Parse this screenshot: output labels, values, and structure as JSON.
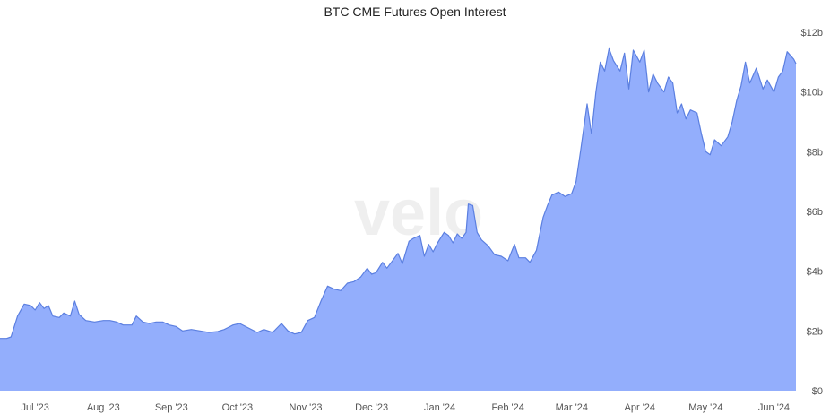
{
  "watermark": "velo",
  "chart_data": {
    "type": "area",
    "title": "BTC CME Futures Open Interest",
    "xlabel": "",
    "ylabel": "",
    "y_unit": "billion USD",
    "ylim": [
      0,
      12
    ],
    "y_ticks": [
      0,
      2,
      4,
      6,
      8,
      10,
      12
    ],
    "y_tick_labels": [
      "$0",
      "$2b",
      "$4b",
      "$6b",
      "$8b",
      "$10b",
      "$12b"
    ],
    "y_axis_side": "right",
    "x_range": [
      "2023-06-15",
      "2024-06-11"
    ],
    "x_ticks": [
      {
        "date": "2023-07-01",
        "label": "Jul '23"
      },
      {
        "date": "2023-08-01",
        "label": "Aug '23"
      },
      {
        "date": "2023-09-01",
        "label": "Sep '23"
      },
      {
        "date": "2023-10-01",
        "label": "Oct '23"
      },
      {
        "date": "2023-11-01",
        "label": "Nov '23"
      },
      {
        "date": "2023-12-01",
        "label": "Dec '23"
      },
      {
        "date": "2024-01-01",
        "label": "Jan '24"
      },
      {
        "date": "2024-02-01",
        "label": "Feb '24"
      },
      {
        "date": "2024-03-01",
        "label": "Mar '24"
      },
      {
        "date": "2024-04-01",
        "label": "Apr '24"
      },
      {
        "date": "2024-05-01",
        "label": "May '24"
      },
      {
        "date": "2024-06-01",
        "label": "Jun '24"
      }
    ],
    "grid": false,
    "colors": {
      "line": "#5b7fe0",
      "fill": "#93aefc"
    },
    "series": [
      {
        "points": [
          [
            "2023-06-15",
            1.75
          ],
          [
            "2023-06-18",
            1.75
          ],
          [
            "2023-06-20",
            1.8
          ],
          [
            "2023-06-23",
            2.5
          ],
          [
            "2023-06-26",
            2.9
          ],
          [
            "2023-06-29",
            2.85
          ],
          [
            "2023-07-01",
            2.7
          ],
          [
            "2023-07-03",
            2.95
          ],
          [
            "2023-07-05",
            2.75
          ],
          [
            "2023-07-07",
            2.85
          ],
          [
            "2023-07-09",
            2.5
          ],
          [
            "2023-07-12",
            2.45
          ],
          [
            "2023-07-14",
            2.6
          ],
          [
            "2023-07-17",
            2.5
          ],
          [
            "2023-07-19",
            3.0
          ],
          [
            "2023-07-21",
            2.55
          ],
          [
            "2023-07-24",
            2.35
          ],
          [
            "2023-07-28",
            2.3
          ],
          [
            "2023-08-01",
            2.35
          ],
          [
            "2023-08-04",
            2.35
          ],
          [
            "2023-08-07",
            2.3
          ],
          [
            "2023-08-10",
            2.2
          ],
          [
            "2023-08-14",
            2.2
          ],
          [
            "2023-08-16",
            2.5
          ],
          [
            "2023-08-19",
            2.3
          ],
          [
            "2023-08-22",
            2.25
          ],
          [
            "2023-08-25",
            2.3
          ],
          [
            "2023-08-28",
            2.3
          ],
          [
            "2023-08-31",
            2.2
          ],
          [
            "2023-09-03",
            2.15
          ],
          [
            "2023-09-06",
            2.0
          ],
          [
            "2023-09-10",
            2.05
          ],
          [
            "2023-09-14",
            2.0
          ],
          [
            "2023-09-18",
            1.95
          ],
          [
            "2023-09-22",
            1.98
          ],
          [
            "2023-09-25",
            2.05
          ],
          [
            "2023-09-29",
            2.2
          ],
          [
            "2023-10-02",
            2.25
          ],
          [
            "2023-10-06",
            2.1
          ],
          [
            "2023-10-10",
            1.95
          ],
          [
            "2023-10-13",
            2.05
          ],
          [
            "2023-10-17",
            1.95
          ],
          [
            "2023-10-21",
            2.25
          ],
          [
            "2023-10-24",
            2.0
          ],
          [
            "2023-10-27",
            1.9
          ],
          [
            "2023-10-30",
            1.95
          ],
          [
            "2023-11-02",
            2.35
          ],
          [
            "2023-11-05",
            2.45
          ],
          [
            "2023-11-08",
            3.0
          ],
          [
            "2023-11-11",
            3.5
          ],
          [
            "2023-11-14",
            3.4
          ],
          [
            "2023-11-17",
            3.35
          ],
          [
            "2023-11-20",
            3.6
          ],
          [
            "2023-11-23",
            3.65
          ],
          [
            "2023-11-26",
            3.8
          ],
          [
            "2023-11-29",
            4.1
          ],
          [
            "2023-12-01",
            3.9
          ],
          [
            "2023-12-03",
            3.95
          ],
          [
            "2023-12-06",
            4.3
          ],
          [
            "2023-12-08",
            4.1
          ],
          [
            "2023-12-11",
            4.4
          ],
          [
            "2023-12-13",
            4.6
          ],
          [
            "2023-12-15",
            4.25
          ],
          [
            "2023-12-18",
            5.0
          ],
          [
            "2023-12-20",
            5.1
          ],
          [
            "2023-12-23",
            5.2
          ],
          [
            "2023-12-25",
            4.5
          ],
          [
            "2023-12-27",
            4.9
          ],
          [
            "2023-12-29",
            4.65
          ],
          [
            "2023-12-31",
            4.95
          ],
          [
            "2024-01-03",
            5.3
          ],
          [
            "2024-01-05",
            5.2
          ],
          [
            "2024-01-07",
            4.95
          ],
          [
            "2024-01-09",
            5.25
          ],
          [
            "2024-01-11",
            5.1
          ],
          [
            "2024-01-13",
            5.3
          ],
          [
            "2024-01-14",
            6.25
          ],
          [
            "2024-01-16",
            6.2
          ],
          [
            "2024-01-18",
            5.3
          ],
          [
            "2024-01-20",
            5.05
          ],
          [
            "2024-01-23",
            4.85
          ],
          [
            "2024-01-26",
            4.55
          ],
          [
            "2024-01-29",
            4.5
          ],
          [
            "2024-02-01",
            4.35
          ],
          [
            "2024-02-04",
            4.9
          ],
          [
            "2024-02-06",
            4.45
          ],
          [
            "2024-02-09",
            4.45
          ],
          [
            "2024-02-11",
            4.3
          ],
          [
            "2024-02-14",
            4.7
          ],
          [
            "2024-02-17",
            5.8
          ],
          [
            "2024-02-19",
            6.2
          ],
          [
            "2024-02-21",
            6.55
          ],
          [
            "2024-02-24",
            6.65
          ],
          [
            "2024-02-27",
            6.5
          ],
          [
            "2024-03-01",
            6.6
          ],
          [
            "2024-03-03",
            7.0
          ],
          [
            "2024-03-05",
            8.0
          ],
          [
            "2024-03-08",
            9.6
          ],
          [
            "2024-03-10",
            8.6
          ],
          [
            "2024-03-12",
            10.0
          ],
          [
            "2024-03-14",
            11.0
          ],
          [
            "2024-03-16",
            10.7
          ],
          [
            "2024-03-18",
            11.45
          ],
          [
            "2024-03-20",
            11.05
          ],
          [
            "2024-03-23",
            10.7
          ],
          [
            "2024-03-25",
            11.3
          ],
          [
            "2024-03-27",
            10.1
          ],
          [
            "2024-03-29",
            11.4
          ],
          [
            "2024-04-01",
            11.0
          ],
          [
            "2024-04-03",
            11.4
          ],
          [
            "2024-04-05",
            10.0
          ],
          [
            "2024-04-07",
            10.6
          ],
          [
            "2024-04-09",
            10.3
          ],
          [
            "2024-04-12",
            10.0
          ],
          [
            "2024-04-14",
            10.5
          ],
          [
            "2024-04-16",
            10.3
          ],
          [
            "2024-04-18",
            9.3
          ],
          [
            "2024-04-20",
            9.6
          ],
          [
            "2024-04-22",
            9.1
          ],
          [
            "2024-04-24",
            9.4
          ],
          [
            "2024-04-27",
            9.3
          ],
          [
            "2024-04-29",
            8.6
          ],
          [
            "2024-05-01",
            8.0
          ],
          [
            "2024-05-03",
            7.9
          ],
          [
            "2024-05-05",
            8.4
          ],
          [
            "2024-05-08",
            8.2
          ],
          [
            "2024-05-11",
            8.5
          ],
          [
            "2024-05-13",
            9.0
          ],
          [
            "2024-05-15",
            9.7
          ],
          [
            "2024-05-17",
            10.2
          ],
          [
            "2024-05-19",
            11.0
          ],
          [
            "2024-05-21",
            10.3
          ],
          [
            "2024-05-24",
            10.8
          ],
          [
            "2024-05-27",
            10.1
          ],
          [
            "2024-05-29",
            10.4
          ],
          [
            "2024-06-01",
            10.0
          ],
          [
            "2024-06-03",
            10.5
          ],
          [
            "2024-06-05",
            10.7
          ],
          [
            "2024-06-07",
            11.35
          ],
          [
            "2024-06-10",
            11.1
          ],
          [
            "2024-06-11",
            10.95
          ]
        ]
      }
    ]
  }
}
